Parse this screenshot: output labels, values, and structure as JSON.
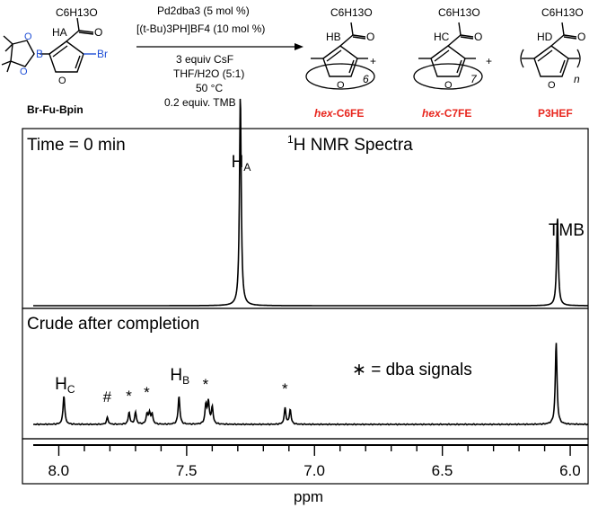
{
  "scheme": {
    "reactant": {
      "label": "Br-Fu-Bpin",
      "ester_chain": "C6H13O",
      "proton": "HA",
      "halogen": "Br"
    },
    "conditions": {
      "catalyst": "Pd2dba3 (5 mol %)",
      "ligand": "[(t-Bu)3PH]BF4 (10 mol %)",
      "base": "3 equiv CsF",
      "solvent": "THF/H2O (5:1)",
      "temperature": "50 °C",
      "standard": "0.2 equiv. TMB"
    },
    "products": [
      {
        "label_prefix": "hex-",
        "label_main": "C6FE",
        "proton": "HB",
        "subscript": "6"
      },
      {
        "label_prefix": "hex-",
        "label_main": "C7FE",
        "proton": "HC",
        "subscript": "7"
      },
      {
        "label_prefix": "",
        "label_main": "P3HEF",
        "proton": "HD",
        "subscript": "n"
      }
    ],
    "plus": "+",
    "label_color": "#e8261e"
  },
  "nmr": {
    "title": "1H NMR Spectra",
    "panel_top_label": "Time = 0 min",
    "panel_bottom_label": "Crude after completion",
    "legend_star": "∗ = dba signals",
    "peak_labels_top": [
      {
        "text": "HA",
        "ppm": 7.29
      },
      {
        "text": "TMB",
        "ppm": 6.05
      }
    ],
    "peak_labels_bottom": [
      {
        "text": "HC",
        "ppm": 7.98
      },
      {
        "text": "#",
        "ppm": 7.81
      },
      {
        "text": "*",
        "ppm": 7.72
      },
      {
        "text": "*",
        "ppm": 7.65
      },
      {
        "text": "HB",
        "ppm": 7.53
      },
      {
        "text": "*",
        "ppm": 7.42
      },
      {
        "text": "*",
        "ppm": 7.11
      }
    ],
    "x_axis": {
      "label": "ppm",
      "ticks": [
        "8.0",
        "7.5",
        "7.0",
        "6.5",
        "6.0"
      ],
      "range": [
        8.1,
        5.93
      ]
    }
  },
  "chart_data": {
    "type": "line",
    "title": "1H NMR Spectra",
    "xlabel": "ppm",
    "xlim": [
      8.1,
      5.93
    ],
    "series": [
      {
        "name": "Time = 0 min",
        "peaks_ppm": [
          7.29,
          6.05
        ],
        "relative_intensity": [
          1.0,
          0.42
        ]
      },
      {
        "name": "Crude after completion",
        "peaks_ppm": [
          7.98,
          7.81,
          7.725,
          7.7,
          7.655,
          7.645,
          7.635,
          7.53,
          7.425,
          7.415,
          7.4,
          7.115,
          7.095,
          6.055
        ],
        "relative_intensity": [
          0.34,
          0.08,
          0.14,
          0.14,
          0.12,
          0.13,
          0.11,
          0.33,
          0.22,
          0.26,
          0.2,
          0.19,
          0.17,
          0.96
        ]
      }
    ]
  }
}
